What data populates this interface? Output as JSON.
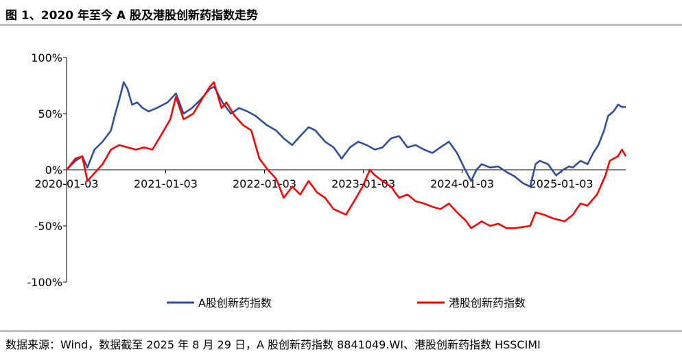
{
  "title": "图 1、2020 年至今 A 股及港股创新药指数走势",
  "source": "数据来源：Wind，数据截至 2025 年 8 月 29 日，A 股创新药指数 8841049.WI、港股创新药指数 HSSCIMI",
  "chart_data": {
    "type": "line",
    "title": "",
    "xlabel": "",
    "ylabel": "",
    "ylim": [
      -100,
      100
    ],
    "x_range": [
      "2020-01-03",
      "2025-08-29"
    ],
    "y_ticks": [
      100,
      50,
      0,
      -50,
      -100
    ],
    "y_tick_labels": [
      "100%",
      "50%",
      "0%",
      "-50%",
      "-100%"
    ],
    "x_ticks": [
      "2020-01-03",
      "2021-01-03",
      "2022-01-03",
      "2023-01-03",
      "2024-01-03",
      "2025-01-03"
    ],
    "grid": false,
    "legend_position": "bottom",
    "series": [
      {
        "name": "A股创新药指数",
        "color": "#2E4D9B",
        "points": [
          [
            "2020-01-03",
            0
          ],
          [
            "2020-02-05",
            8
          ],
          [
            "2020-03-01",
            12
          ],
          [
            "2020-03-20",
            2
          ],
          [
            "2020-04-15",
            18
          ],
          [
            "2020-05-15",
            25
          ],
          [
            "2020-06-15",
            35
          ],
          [
            "2020-07-01",
            50
          ],
          [
            "2020-07-15",
            62
          ],
          [
            "2020-08-01",
            78
          ],
          [
            "2020-08-15",
            72
          ],
          [
            "2020-09-01",
            58
          ],
          [
            "2020-09-20",
            60
          ],
          [
            "2020-10-10",
            55
          ],
          [
            "2020-11-01",
            52
          ],
          [
            "2020-12-01",
            55
          ],
          [
            "2021-01-10",
            60
          ],
          [
            "2021-02-10",
            68
          ],
          [
            "2021-03-10",
            50
          ],
          [
            "2021-04-10",
            55
          ],
          [
            "2021-05-10",
            62
          ],
          [
            "2021-06-15",
            72
          ],
          [
            "2021-07-01",
            74
          ],
          [
            "2021-08-01",
            60
          ],
          [
            "2021-09-01",
            50
          ],
          [
            "2021-10-01",
            55
          ],
          [
            "2021-11-01",
            52
          ],
          [
            "2021-12-01",
            48
          ],
          [
            "2022-01-10",
            40
          ],
          [
            "2022-02-15",
            35
          ],
          [
            "2022-03-15",
            28
          ],
          [
            "2022-04-15",
            22
          ],
          [
            "2022-05-15",
            30
          ],
          [
            "2022-06-15",
            38
          ],
          [
            "2022-07-10",
            35
          ],
          [
            "2022-08-15",
            25
          ],
          [
            "2022-09-15",
            20
          ],
          [
            "2022-10-15",
            10
          ],
          [
            "2022-11-15",
            20
          ],
          [
            "2022-12-15",
            25
          ],
          [
            "2023-01-15",
            22
          ],
          [
            "2023-02-15",
            18
          ],
          [
            "2023-03-15",
            20
          ],
          [
            "2023-04-15",
            28
          ],
          [
            "2023-05-15",
            30
          ],
          [
            "2023-06-15",
            20
          ],
          [
            "2023-07-15",
            22
          ],
          [
            "2023-08-15",
            18
          ],
          [
            "2023-09-15",
            15
          ],
          [
            "2023-10-15",
            20
          ],
          [
            "2023-11-15",
            25
          ],
          [
            "2023-12-15",
            15
          ],
          [
            "2024-01-10",
            2
          ],
          [
            "2024-02-05",
            -10
          ],
          [
            "2024-02-25",
            0
          ],
          [
            "2024-03-15",
            5
          ],
          [
            "2024-04-15",
            2
          ],
          [
            "2024-05-15",
            3
          ],
          [
            "2024-06-15",
            -2
          ],
          [
            "2024-07-15",
            -6
          ],
          [
            "2024-08-15",
            -12
          ],
          [
            "2024-09-10",
            -15
          ],
          [
            "2024-09-30",
            5
          ],
          [
            "2024-10-15",
            8
          ],
          [
            "2024-11-15",
            5
          ],
          [
            "2024-12-15",
            -5
          ],
          [
            "2025-01-10",
            0
          ],
          [
            "2025-02-01",
            3
          ],
          [
            "2025-02-15",
            2
          ],
          [
            "2025-03-15",
            8
          ],
          [
            "2025-04-10",
            5
          ],
          [
            "2025-05-01",
            15
          ],
          [
            "2025-05-20",
            22
          ],
          [
            "2025-06-10",
            35
          ],
          [
            "2025-06-25",
            48
          ],
          [
            "2025-07-15",
            52
          ],
          [
            "2025-08-01",
            58
          ],
          [
            "2025-08-15",
            56
          ],
          [
            "2025-08-29",
            56
          ]
        ]
      },
      {
        "name": "港股创新药指数",
        "color": "#FF0000",
        "points": [
          [
            "2020-01-03",
            0
          ],
          [
            "2020-02-05",
            10
          ],
          [
            "2020-03-01",
            12
          ],
          [
            "2020-03-20",
            -10
          ],
          [
            "2020-04-15",
            -3
          ],
          [
            "2020-05-15",
            5
          ],
          [
            "2020-06-15",
            18
          ],
          [
            "2020-07-15",
            22
          ],
          [
            "2020-08-15",
            20
          ],
          [
            "2020-09-15",
            18
          ],
          [
            "2020-10-15",
            20
          ],
          [
            "2020-11-15",
            18
          ],
          [
            "2020-12-15",
            30
          ],
          [
            "2021-01-20",
            45
          ],
          [
            "2021-02-10",
            65
          ],
          [
            "2021-03-10",
            45
          ],
          [
            "2021-04-15",
            50
          ],
          [
            "2021-05-15",
            62
          ],
          [
            "2021-06-15",
            74
          ],
          [
            "2021-06-30",
            78
          ],
          [
            "2021-07-28",
            55
          ],
          [
            "2021-08-15",
            60
          ],
          [
            "2021-09-15",
            48
          ],
          [
            "2021-10-15",
            40
          ],
          [
            "2021-11-15",
            35
          ],
          [
            "2021-12-15",
            10
          ],
          [
            "2022-01-15",
            0
          ],
          [
            "2022-02-15",
            -8
          ],
          [
            "2022-03-15",
            -25
          ],
          [
            "2022-04-15",
            -15
          ],
          [
            "2022-05-15",
            -22
          ],
          [
            "2022-06-15",
            -10
          ],
          [
            "2022-07-15",
            -20
          ],
          [
            "2022-08-15",
            -25
          ],
          [
            "2022-09-15",
            -35
          ],
          [
            "2022-10-31",
            -40
          ],
          [
            "2022-11-30",
            -28
          ],
          [
            "2022-12-31",
            -15
          ],
          [
            "2023-01-27",
            0
          ],
          [
            "2023-02-15",
            -5
          ],
          [
            "2023-03-15",
            -10
          ],
          [
            "2023-04-15",
            -15
          ],
          [
            "2023-05-15",
            -25
          ],
          [
            "2023-06-15",
            -22
          ],
          [
            "2023-07-15",
            -28
          ],
          [
            "2023-08-15",
            -30
          ],
          [
            "2023-09-15",
            -33
          ],
          [
            "2023-10-15",
            -35
          ],
          [
            "2023-11-15",
            -30
          ],
          [
            "2023-12-15",
            -38
          ],
          [
            "2024-01-15",
            -45
          ],
          [
            "2024-02-05",
            -52
          ],
          [
            "2024-03-15",
            -46
          ],
          [
            "2024-04-15",
            -50
          ],
          [
            "2024-05-15",
            -48
          ],
          [
            "2024-06-15",
            -52
          ],
          [
            "2024-07-15",
            -52
          ],
          [
            "2024-08-15",
            -51
          ],
          [
            "2024-09-10",
            -50
          ],
          [
            "2024-09-30",
            -38
          ],
          [
            "2024-10-31",
            -40
          ],
          [
            "2024-11-30",
            -43
          ],
          [
            "2024-12-31",
            -45
          ],
          [
            "2025-01-15",
            -46
          ],
          [
            "2025-02-15",
            -40
          ],
          [
            "2025-03-15",
            -30
          ],
          [
            "2025-04-09",
            -32
          ],
          [
            "2025-05-15",
            -22
          ],
          [
            "2025-06-15",
            -5
          ],
          [
            "2025-07-01",
            8
          ],
          [
            "2025-07-31",
            12
          ],
          [
            "2025-08-15",
            18
          ],
          [
            "2025-08-29",
            12
          ]
        ]
      }
    ]
  }
}
